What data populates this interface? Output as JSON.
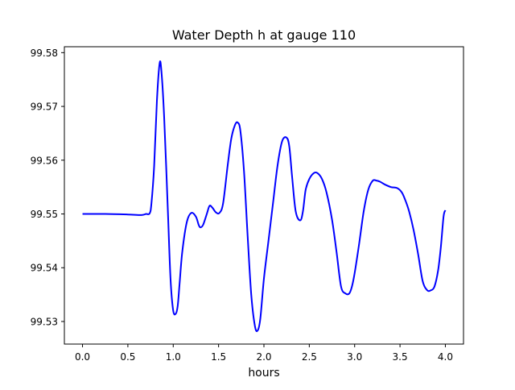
{
  "chart_data": {
    "type": "line",
    "title": "Water Depth h at gauge 110",
    "xlabel": "hours",
    "ylabel": "",
    "xlim": [
      -0.2,
      4.2
    ],
    "ylim": [
      99.5258,
      99.5811
    ],
    "xticks": [
      0.0,
      0.5,
      1.0,
      1.5,
      2.0,
      2.5,
      3.0,
      3.5,
      4.0
    ],
    "xtick_labels": [
      "0.0",
      "0.5",
      "1.0",
      "1.5",
      "2.0",
      "2.5",
      "3.0",
      "3.5",
      "4.0"
    ],
    "yticks": [
      99.53,
      99.54,
      99.55,
      99.56,
      99.57,
      99.58
    ],
    "ytick_labels": [
      "99.53",
      "99.54",
      "99.55",
      "99.56",
      "99.57",
      "99.58"
    ],
    "grid": false,
    "series": [
      {
        "color": "#0000ff",
        "x": [
          0.0,
          0.25,
          0.5,
          0.65,
          0.7,
          0.74,
          0.76,
          0.79,
          0.82,
          0.85,
          0.87,
          0.9,
          0.94,
          0.97,
          1.0,
          1.03,
          1.05,
          1.07,
          1.1,
          1.15,
          1.2,
          1.25,
          1.28,
          1.3,
          1.33,
          1.37,
          1.4,
          1.43,
          1.47,
          1.51,
          1.55,
          1.6,
          1.64,
          1.68,
          1.71,
          1.74,
          1.78,
          1.82,
          1.86,
          1.9,
          1.93,
          1.96,
          2.0,
          2.05,
          2.1,
          2.15,
          2.2,
          2.25,
          2.28,
          2.31,
          2.35,
          2.4,
          2.43,
          2.46,
          2.5,
          2.55,
          2.59,
          2.64,
          2.69,
          2.75,
          2.8,
          2.85,
          2.9,
          2.94,
          2.97,
          3.0,
          3.05,
          3.1,
          3.15,
          3.2,
          3.24,
          3.28,
          3.33,
          3.4,
          3.47,
          3.52,
          3.56,
          3.6,
          3.65,
          3.7,
          3.75,
          3.8,
          3.84,
          3.88,
          3.92,
          3.95,
          3.98,
          4.0
        ],
        "y": [
          99.55,
          99.55,
          99.5499,
          99.5498,
          99.55,
          99.5501,
          99.552,
          99.559,
          99.571,
          99.578,
          99.5765,
          99.568,
          99.551,
          99.538,
          99.532,
          99.5315,
          99.533,
          99.537,
          99.543,
          99.5485,
          99.5502,
          99.5495,
          99.548,
          99.5475,
          99.548,
          99.55,
          99.5515,
          99.5512,
          99.5503,
          99.5502,
          99.552,
          99.559,
          99.564,
          99.5665,
          99.567,
          99.5655,
          99.558,
          99.546,
          99.535,
          99.5292,
          99.5283,
          99.5305,
          99.538,
          99.545,
          99.552,
          99.559,
          99.5635,
          99.5642,
          99.5625,
          99.557,
          99.5505,
          99.5488,
          99.5505,
          99.5545,
          99.5565,
          99.5576,
          99.5576,
          99.5565,
          99.554,
          99.549,
          99.543,
          99.5365,
          99.5352,
          99.5352,
          99.5365,
          99.539,
          99.5445,
          99.5505,
          99.5545,
          99.5562,
          99.5562,
          99.556,
          99.5555,
          99.555,
          99.5548,
          99.554,
          99.5525,
          99.5505,
          99.547,
          99.5425,
          99.5375,
          99.5358,
          99.5358,
          99.5365,
          99.5395,
          99.5438,
          99.5495,
          99.5507
        ]
      }
    ]
  }
}
